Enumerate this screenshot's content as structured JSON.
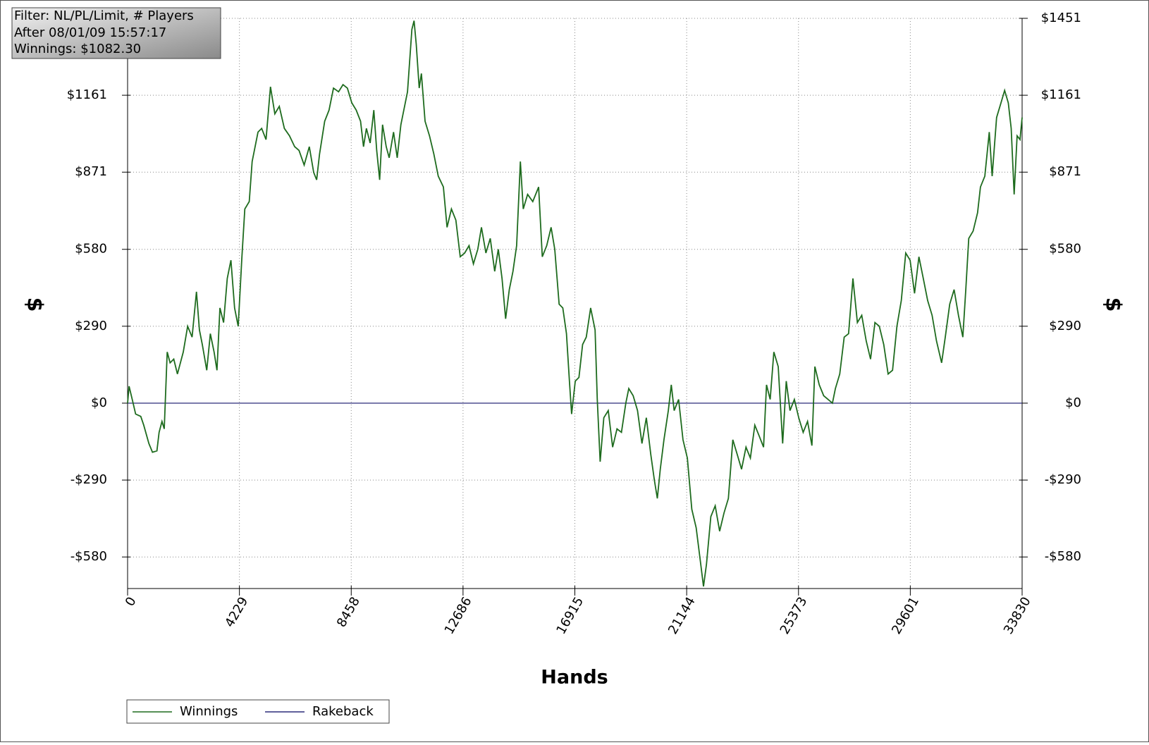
{
  "chart_data": {
    "type": "line",
    "annotations": [
      "Filter: NL/PL/Limit, # Players",
      "After 08/01/09 15:57:17",
      "Winnings: $1082.30"
    ],
    "xlabel": "Hands",
    "ylabel": "$",
    "xlim": [
      0,
      33830
    ],
    "xticks": [
      0,
      4229,
      8458,
      12686,
      16915,
      21144,
      25373,
      29601,
      33830
    ],
    "ylim": [
      -699,
      1451
    ],
    "yticks": [
      {
        "value": -580,
        "label": "-$580"
      },
      {
        "value": -290,
        "label": "-$290"
      },
      {
        "value": 0,
        "label": "$0"
      },
      {
        "value": 290,
        "label": "$290"
      },
      {
        "value": 580,
        "label": "$580"
      },
      {
        "value": 871,
        "label": "$871"
      },
      {
        "value": 1161,
        "label": "$1161"
      },
      {
        "value": 1451,
        "label": "$1451"
      }
    ],
    "grid": true,
    "legend": "bottom-left",
    "x": [
      0,
      55,
      194,
      305,
      499,
      610,
      804,
      942,
      1109,
      1192,
      1302,
      1386,
      1497,
      1607,
      1746,
      1884,
      2106,
      2272,
      2438,
      2605,
      2716,
      2826,
      2993,
      3131,
      3270,
      3381,
      3491,
      3630,
      3769,
      3907,
      4046,
      4184,
      4323,
      4434,
      4600,
      4711,
      4932,
      5071,
      5237,
      5403,
      5570,
      5736,
      5930,
      6124,
      6318,
      6484,
      6678,
      6872,
      7038,
      7149,
      7260,
      7454,
      7620,
      7787,
      7980,
      8147,
      8313,
      8479,
      8646,
      8812,
      8923,
      9033,
      9172,
      9311,
      9421,
      9532,
      9643,
      9782,
      9892,
      10059,
      10197,
      10336,
      10419,
      10585,
      10751,
      10835,
      10918,
      11029,
      11112,
      11250,
      11417,
      11583,
      11749,
      11943,
      12082,
      12248,
      12414,
      12580,
      12747,
      12913,
      13079,
      13245,
      13384,
      13550,
      13716,
      13883,
      14021,
      14160,
      14298,
      14437,
      14575,
      14714,
      14853,
      14963,
      15130,
      15324,
      15545,
      15684,
      15850,
      16016,
      16155,
      16321,
      16460,
      16598,
      16709,
      16792,
      16931,
      17069,
      17208,
      17346,
      17513,
      17679,
      17762,
      17873,
      18012,
      18178,
      18344,
      18510,
      18677,
      18843,
      18954,
      19120,
      19286,
      19452,
      19619,
      19785,
      19923,
      20034,
      20145,
      20284,
      20450,
      20561,
      20672,
      20838,
      21004,
      21170,
      21337,
      21503,
      21642,
      21780,
      21891,
      22057,
      22223,
      22390,
      22556,
      22722,
      22888,
      23055,
      23221,
      23387,
      23554,
      23720,
      23886,
      24052,
      24163,
      24302,
      24440,
      24606,
      24773,
      24911,
      25050,
      25216,
      25382,
      25549,
      25715,
      25881,
      25992,
      26158,
      26325,
      26491,
      26657,
      26768,
      26934,
      27100,
      27267,
      27433,
      27599,
      27765,
      27932,
      28098,
      28264,
      28430,
      28597,
      28763,
      28929,
      29096,
      29262,
      29428,
      29594,
      29761,
      29927,
      30093,
      30259,
      30426,
      30592,
      30786,
      30924,
      31091,
      31257,
      31423,
      31589,
      31700,
      31811,
      31977,
      32144,
      32254,
      32421,
      32587,
      32698,
      32864,
      33030,
      33169,
      33307,
      33418,
      33529,
      33640,
      33750,
      33830
    ],
    "series": [
      {
        "name": "Winnings",
        "color": "#1e6b1e",
        "values": [
          0,
          64,
          6,
          -41,
          -50,
          -83,
          -152,
          -185,
          -180,
          -110,
          -69,
          -97,
          193,
          152,
          166,
          110,
          193,
          290,
          249,
          420,
          276,
          221,
          124,
          262,
          193,
          124,
          359,
          304,
          470,
          539,
          359,
          290,
          552,
          732,
          760,
          911,
          1022,
          1036,
          994,
          1193,
          1091,
          1119,
          1036,
          1008,
          967,
          953,
          898,
          967,
          870,
          842,
          939,
          1063,
          1105,
          1188,
          1174,
          1201,
          1188,
          1132,
          1105,
          1063,
          967,
          1036,
          981,
          1105,
          953,
          842,
          1050,
          967,
          925,
          1022,
          925,
          1050,
          1091,
          1174,
          1409,
          1442,
          1353,
          1188,
          1243,
          1063,
          1008,
          939,
          856,
          815,
          663,
          732,
          690,
          552,
          566,
          594,
          525,
          580,
          663,
          566,
          621,
          497,
          580,
          470,
          318,
          428,
          497,
          594,
          911,
          732,
          787,
          760,
          815,
          552,
          594,
          663,
          580,
          373,
          359,
          262,
          83,
          -41,
          83,
          97,
          221,
          249,
          359,
          276,
          14,
          -221,
          -55,
          -28,
          -166,
          -97,
          -110,
          0,
          55,
          28,
          -28,
          -152,
          -55,
          -193,
          -290,
          -359,
          -249,
          -138,
          -28,
          69,
          -28,
          14,
          -138,
          -207,
          -400,
          -470,
          -580,
          -691,
          -608,
          -428,
          -387,
          -483,
          -414,
          -359,
          -138,
          -193,
          -249,
          -166,
          -207,
          -83,
          -124,
          -166,
          69,
          14,
          193,
          138,
          -152,
          83,
          -28,
          14,
          -55,
          -110,
          -69,
          -160,
          138,
          69,
          28,
          14,
          0,
          55,
          110,
          249,
          262,
          470,
          304,
          331,
          235,
          166,
          304,
          290,
          221,
          110,
          124,
          290,
          387,
          566,
          539,
          414,
          552,
          470,
          387,
          331,
          235,
          152,
          249,
          373,
          428,
          331,
          249,
          428,
          621,
          649,
          718,
          815,
          856,
          1022,
          856,
          1077,
          1132,
          1179,
          1132,
          1036,
          787,
          1008,
          994,
          1077
        ]
      },
      {
        "name": "Rakeback",
        "color": "#2b2b7a",
        "x": [
          0,
          33830
        ],
        "values": [
          0,
          0
        ]
      }
    ]
  }
}
